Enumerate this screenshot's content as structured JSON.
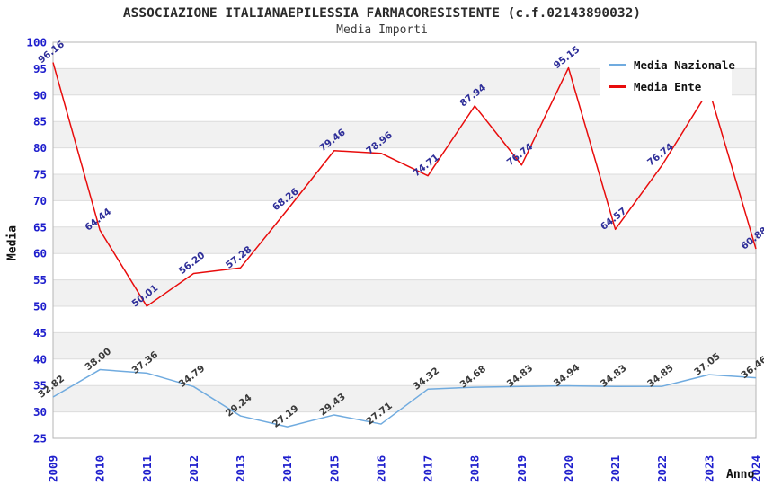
{
  "header": {
    "title": "ASSOCIAZIONE ITALIANAEPILESSIA FARMACORESISTENTE (c.f.02143890032)",
    "subtitle": "Media Importi"
  },
  "legend": {
    "position": "top-right",
    "items": [
      {
        "label": "Media Nazionale",
        "color": "#70abdf"
      },
      {
        "label": "Media Ente",
        "color": "#e80c0c"
      }
    ]
  },
  "chart_data": {
    "type": "line",
    "title": "ASSOCIAZIONE ITALIANAEPILESSIA FARMACORESISTENTE (c.f.02143890032)",
    "subtitle": "Media Importi",
    "xlabel": "Anno",
    "ylabel": "Media",
    "x": [
      "2009",
      "2010",
      "2011",
      "2012",
      "2013",
      "2014",
      "2015",
      "2016",
      "2017",
      "2018",
      "2019",
      "2020",
      "2021",
      "2022",
      "2023",
      "2024"
    ],
    "ylim": [
      25,
      100
    ],
    "y_ticks": [
      25,
      30,
      35,
      40,
      45,
      50,
      55,
      60,
      65,
      70,
      75,
      80,
      85,
      90,
      95,
      100
    ],
    "grid": true,
    "band_color": "#f1f1f1",
    "grid_color": "#dcdcdc",
    "border_color": "#b5b5b5",
    "tick_color": "#1f1fcd",
    "legend_position": "top-right",
    "series": [
      {
        "name": "Media Nazionale",
        "color": "#70abdf",
        "label_color": "#3a3a3a",
        "values": [
          32.82,
          38.0,
          37.36,
          34.79,
          29.24,
          27.19,
          29.43,
          27.71,
          34.32,
          34.68,
          34.83,
          34.94,
          34.83,
          34.85,
          37.05,
          36.46
        ],
        "point_labels": [
          "32.82",
          "38.00",
          "37.36",
          "34.79",
          "29.24",
          "27.19",
          "29.43",
          "27.71",
          "34.32",
          "34.68",
          "34.83",
          "34.94",
          "34.83",
          "34.85",
          "37.05",
          "36.46"
        ]
      },
      {
        "name": "Media Ente",
        "color": "#e80c0c",
        "label_color": "#2f2f99",
        "values": [
          96.16,
          64.44,
          50.01,
          56.2,
          57.28,
          68.26,
          79.46,
          78.96,
          74.71,
          87.94,
          76.74,
          95.15,
          64.57,
          76.74,
          91.0,
          60.88
        ],
        "point_labels": [
          "96.16",
          "64.44",
          "50.01",
          "56.20",
          "57.28",
          "68.26",
          "79.46",
          "78.96",
          "74.71",
          "87.94",
          "76.74",
          "95.15",
          "64.57",
          "76.74",
          "",
          "60.88"
        ]
      }
    ]
  }
}
